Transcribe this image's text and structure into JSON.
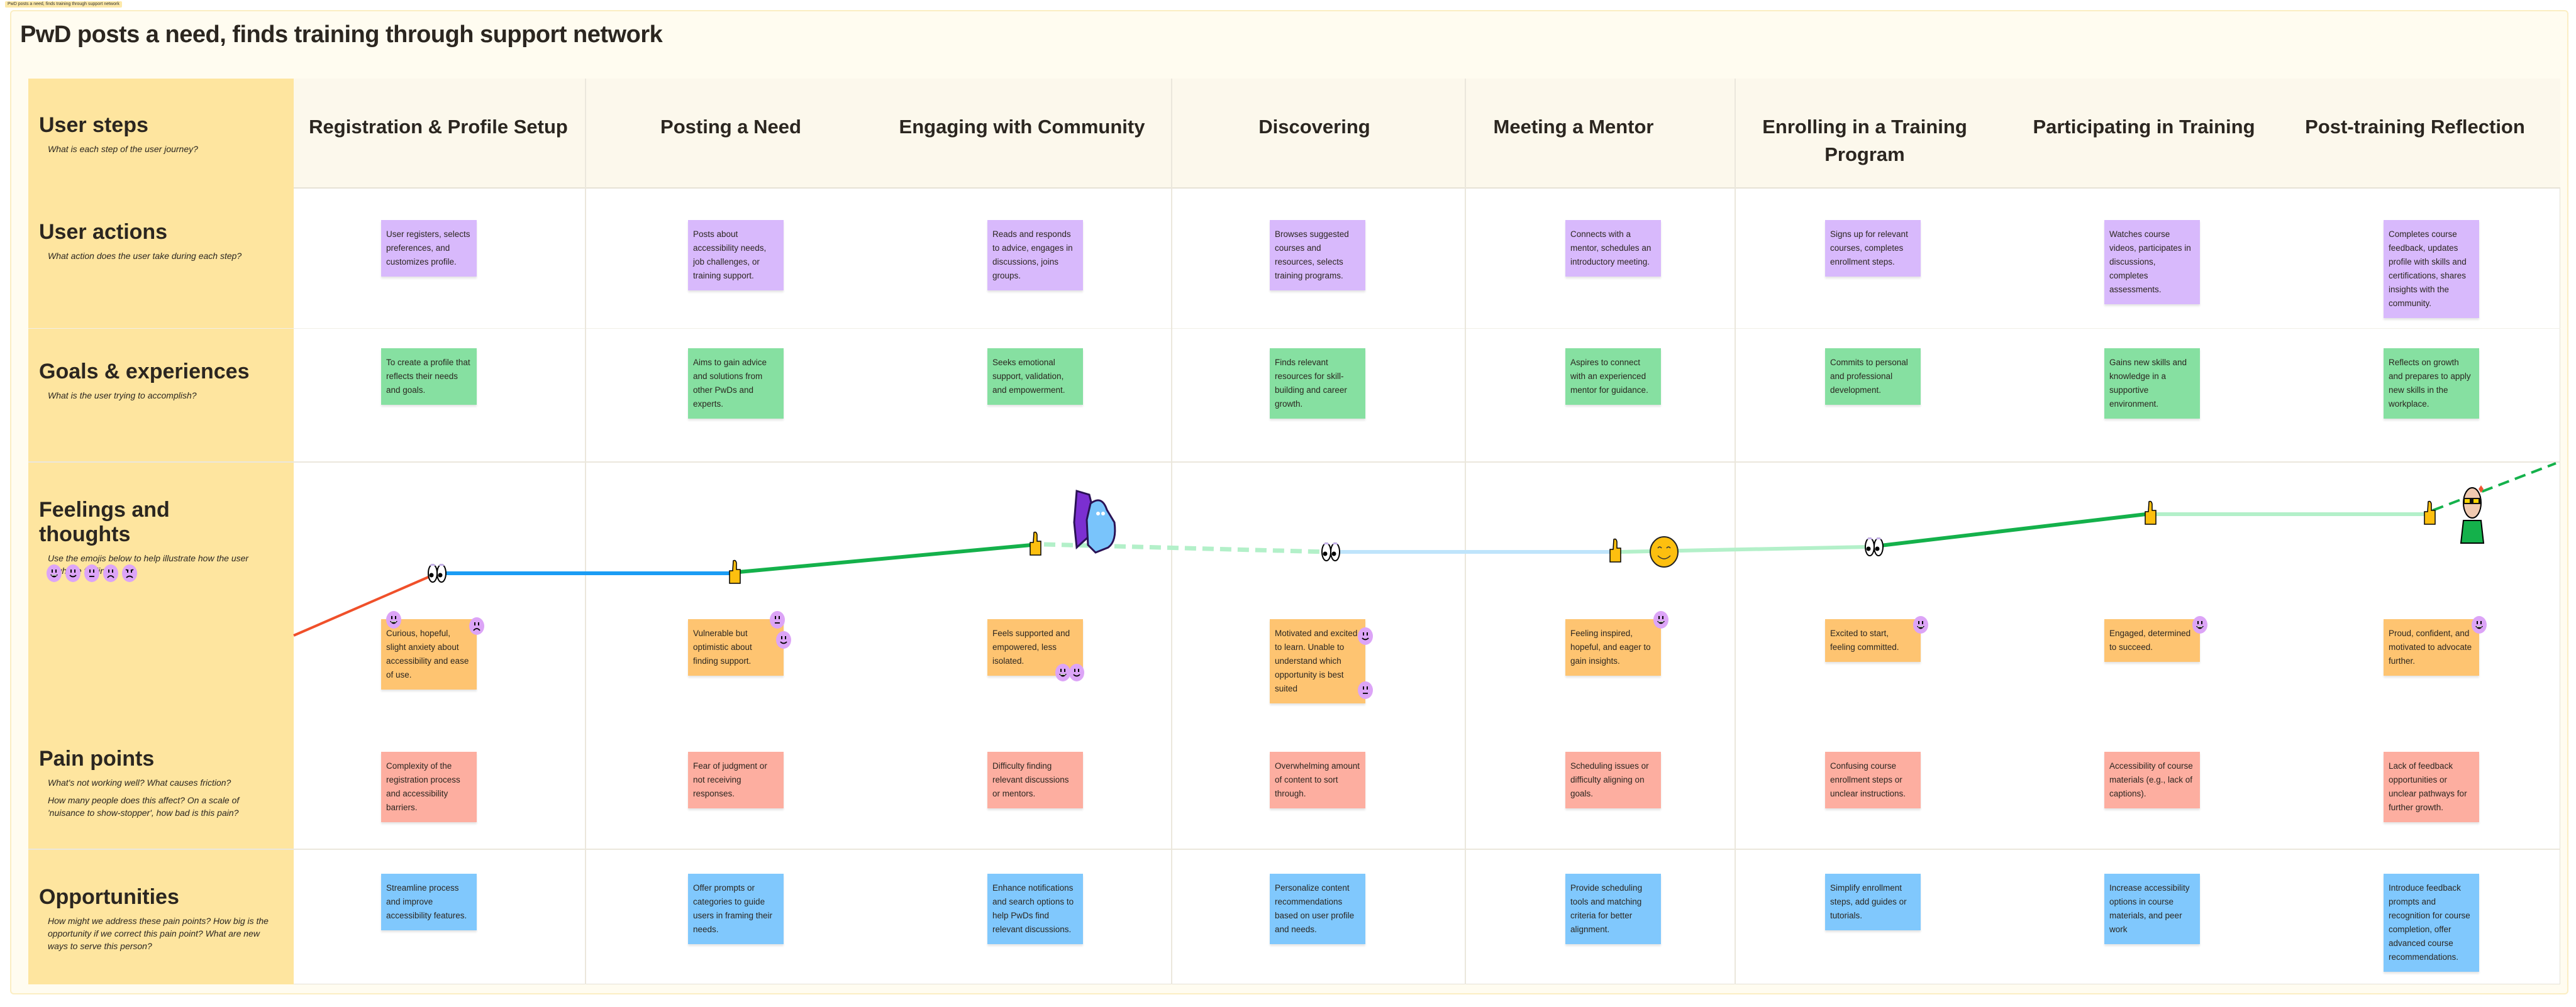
{
  "tag_label": "PwD posts a need, finds training through support network",
  "title": "PwD posts a need, finds training through support network",
  "rows": {
    "steps": {
      "label": "User steps",
      "hint": "What is each step of the user journey?"
    },
    "actions": {
      "label": "User actions",
      "hint": "What action does the user take during each step?"
    },
    "goals": {
      "label": "Goals & experiences",
      "hint": "What is the user trying to accomplish?"
    },
    "feelings": {
      "label": "Feelings and thoughts",
      "hint": "Use the emojis below to help illustrate how the user might be feeling.",
      "legend": [
        "very-happy",
        "happy",
        "neutral",
        "sad",
        "angry"
      ]
    },
    "pain": {
      "label": "Pain points",
      "hint": "What's not working well? What causes friction?",
      "hint2": "How many people does this affect? On a scale of 'nuisance to show-stopper', how bad is this pain?"
    },
    "opportunities": {
      "label": "Opportunities",
      "hint": "How might we address these pain points? How big is the opportunity if we correct this pain point? What are new ways to serve this person?"
    }
  },
  "steps": [
    {
      "name": "Registration & Profile Setup",
      "action": "User registers, selects preferences, and customizes profile.",
      "goal": "To create a profile that reflects their needs and goals.",
      "feeling": "Curious, hopeful, slight anxiety about accessibility and ease of use.",
      "moods": [
        "very-happy",
        "sad"
      ],
      "pain": "Complexity of the registration process and accessibility barriers.",
      "opportunity": "Streamline process and improve accessibility features."
    },
    {
      "name": "Posting a Need",
      "action": "Posts about accessibility needs, job challenges, or training support.",
      "goal": "Aims to gain advice and solutions from other PwDs and experts.",
      "feeling": "Vulnerable but optimistic about finding support.",
      "moods": [
        "neutral",
        "happy"
      ],
      "pain": "Fear of judgment or not receiving responses.",
      "opportunity": "Offer prompts or categories to guide users in framing their needs."
    },
    {
      "name": "Engaging with Community",
      "action": "Reads and responds to advice, engages in discussions, joins groups.",
      "goal": "Seeks emotional support, validation, and empowerment.",
      "feeling": "Feels supported and empowered, less isolated.",
      "moods": [
        "very-happy",
        "happy"
      ],
      "pain": "Difficulty finding relevant discussions or mentors.",
      "opportunity": "Enhance notifications and search options to help PwDs find relevant discussions."
    },
    {
      "name": "Discovering",
      "action": "Browses suggested courses and resources, selects training programs.",
      "goal": "Finds relevant resources for skill-building and career growth.",
      "feeling": "Motivated and excited to learn. Unable to understand which opportunity is best suited",
      "moods": [
        "happy",
        "neutral"
      ],
      "pain": "Overwhelming amount of content to sort through.",
      "opportunity": "Personalize content recommendations based on user profile and needs."
    },
    {
      "name": "Meeting a Mentor",
      "action": "Connects with a mentor, schedules an introductory meeting.",
      "goal": "Aspires to connect with an experienced mentor for guidance.",
      "feeling": "Feeling inspired, hopeful, and eager to gain insights.",
      "moods": [
        "very-happy"
      ],
      "pain": "Scheduling issues or difficulty aligning on goals.",
      "opportunity": "Provide scheduling tools and matching criteria for better alignment."
    },
    {
      "name": "Enrolling in a Training Program",
      "action": "Signs up for relevant courses, completes enrollment steps.",
      "goal": "Commits to personal and professional development.",
      "feeling": "Excited to start, feeling committed.",
      "moods": [
        "very-happy"
      ],
      "pain": "Confusing course enrollment steps or unclear instructions.",
      "opportunity": "Simplify enrollment steps, add guides or tutorials."
    },
    {
      "name": "Participating in Training",
      "action": "Watches course videos, participates in discussions, completes assessments.",
      "goal": "Gains new skills and knowledge in a supportive environment.",
      "feeling": "Engaged, determined to succeed.",
      "moods": [
        "very-happy"
      ],
      "pain": "Accessibility of course materials (e.g., lack of captions).",
      "opportunity": "Increase accessibility options in course materials, and peer work"
    },
    {
      "name": "Post-training Reflection",
      "action": "Completes course feedback, updates profile with skills and certifications, shares insights with the community.",
      "goal": "Reflects on growth and prepares to apply new skills in the workplace.",
      "feeling": "Proud, confident, and motivated to advocate further.",
      "moods": [
        "very-happy"
      ],
      "pain": "Lack of feedback opportunities or unclear pathways for further growth.",
      "opportunity": "Introduce feedback prompts and recognition for course completion, offer advanced course recommendations."
    }
  ],
  "journey_icons": [
    "eyes-icon",
    "thumbs-up-icon",
    "thumbs-up-icon",
    "monsters-sticker",
    "eyes-icon",
    "thumbs-up-icon",
    "smiley-icon",
    "eyes-icon",
    "thumbs-up-icon",
    "thumbs-up-icon",
    "cool-person-sticker"
  ],
  "colors": {
    "actions": "#d8b9fc",
    "goals": "#86e0a1",
    "feelings": "#fec471",
    "pain": "#fdaea0",
    "opportunities": "#80c8fd",
    "row_labels": "#fee59f",
    "mood_sticker": "#dca4f7"
  }
}
